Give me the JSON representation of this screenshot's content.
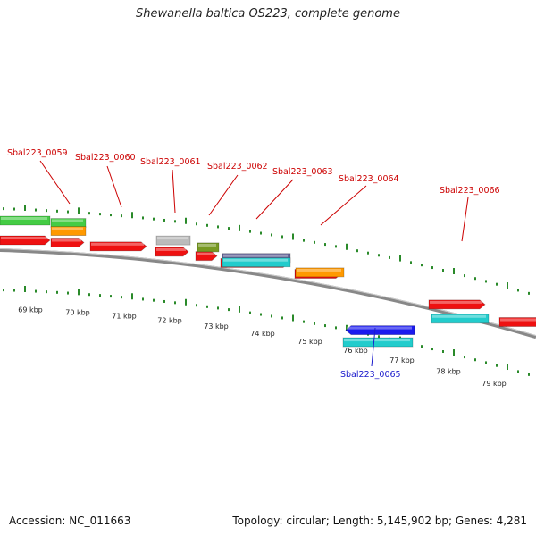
{
  "title": "Shewanella baltica OS223, complete genome",
  "footer": {
    "accession": "Accession: NC_011663",
    "stats": "Topology: circular; Length: 5,145,902 bp; Genes: 4,281"
  },
  "ticks": [
    "69 kbp",
    "70 kbp",
    "71 kbp",
    "72 kbp",
    "73 kbp",
    "74 kbp",
    "75 kbp",
    "76 kbp",
    "77 kbp",
    "78 kbp",
    "79 kbp"
  ],
  "labels": [
    {
      "text": "Sbal223_0059",
      "color": "#cc0000"
    },
    {
      "text": "Sbal223_0060",
      "color": "#cc0000"
    },
    {
      "text": "Sbal223_0061",
      "color": "#cc0000"
    },
    {
      "text": "Sbal223_0062",
      "color": "#cc0000"
    },
    {
      "text": "Sbal223_0063",
      "color": "#cc0000"
    },
    {
      "text": "Sbal223_0064",
      "color": "#cc0000"
    },
    {
      "text": "Sbal223_0066",
      "color": "#cc0000"
    },
    {
      "text": "Sbal223_0065",
      "color": "#1a1acc"
    }
  ],
  "colors": {
    "red": "#ee1111",
    "cyan": "#22cccc",
    "blue": "#1a1aee",
    "orange": "#ff9900",
    "green": "#44cc44",
    "grey": "#bbbbbb",
    "olive": "#779922",
    "purple": "#666699",
    "tick": "#2a8a2a",
    "backbone": "#888888"
  }
}
